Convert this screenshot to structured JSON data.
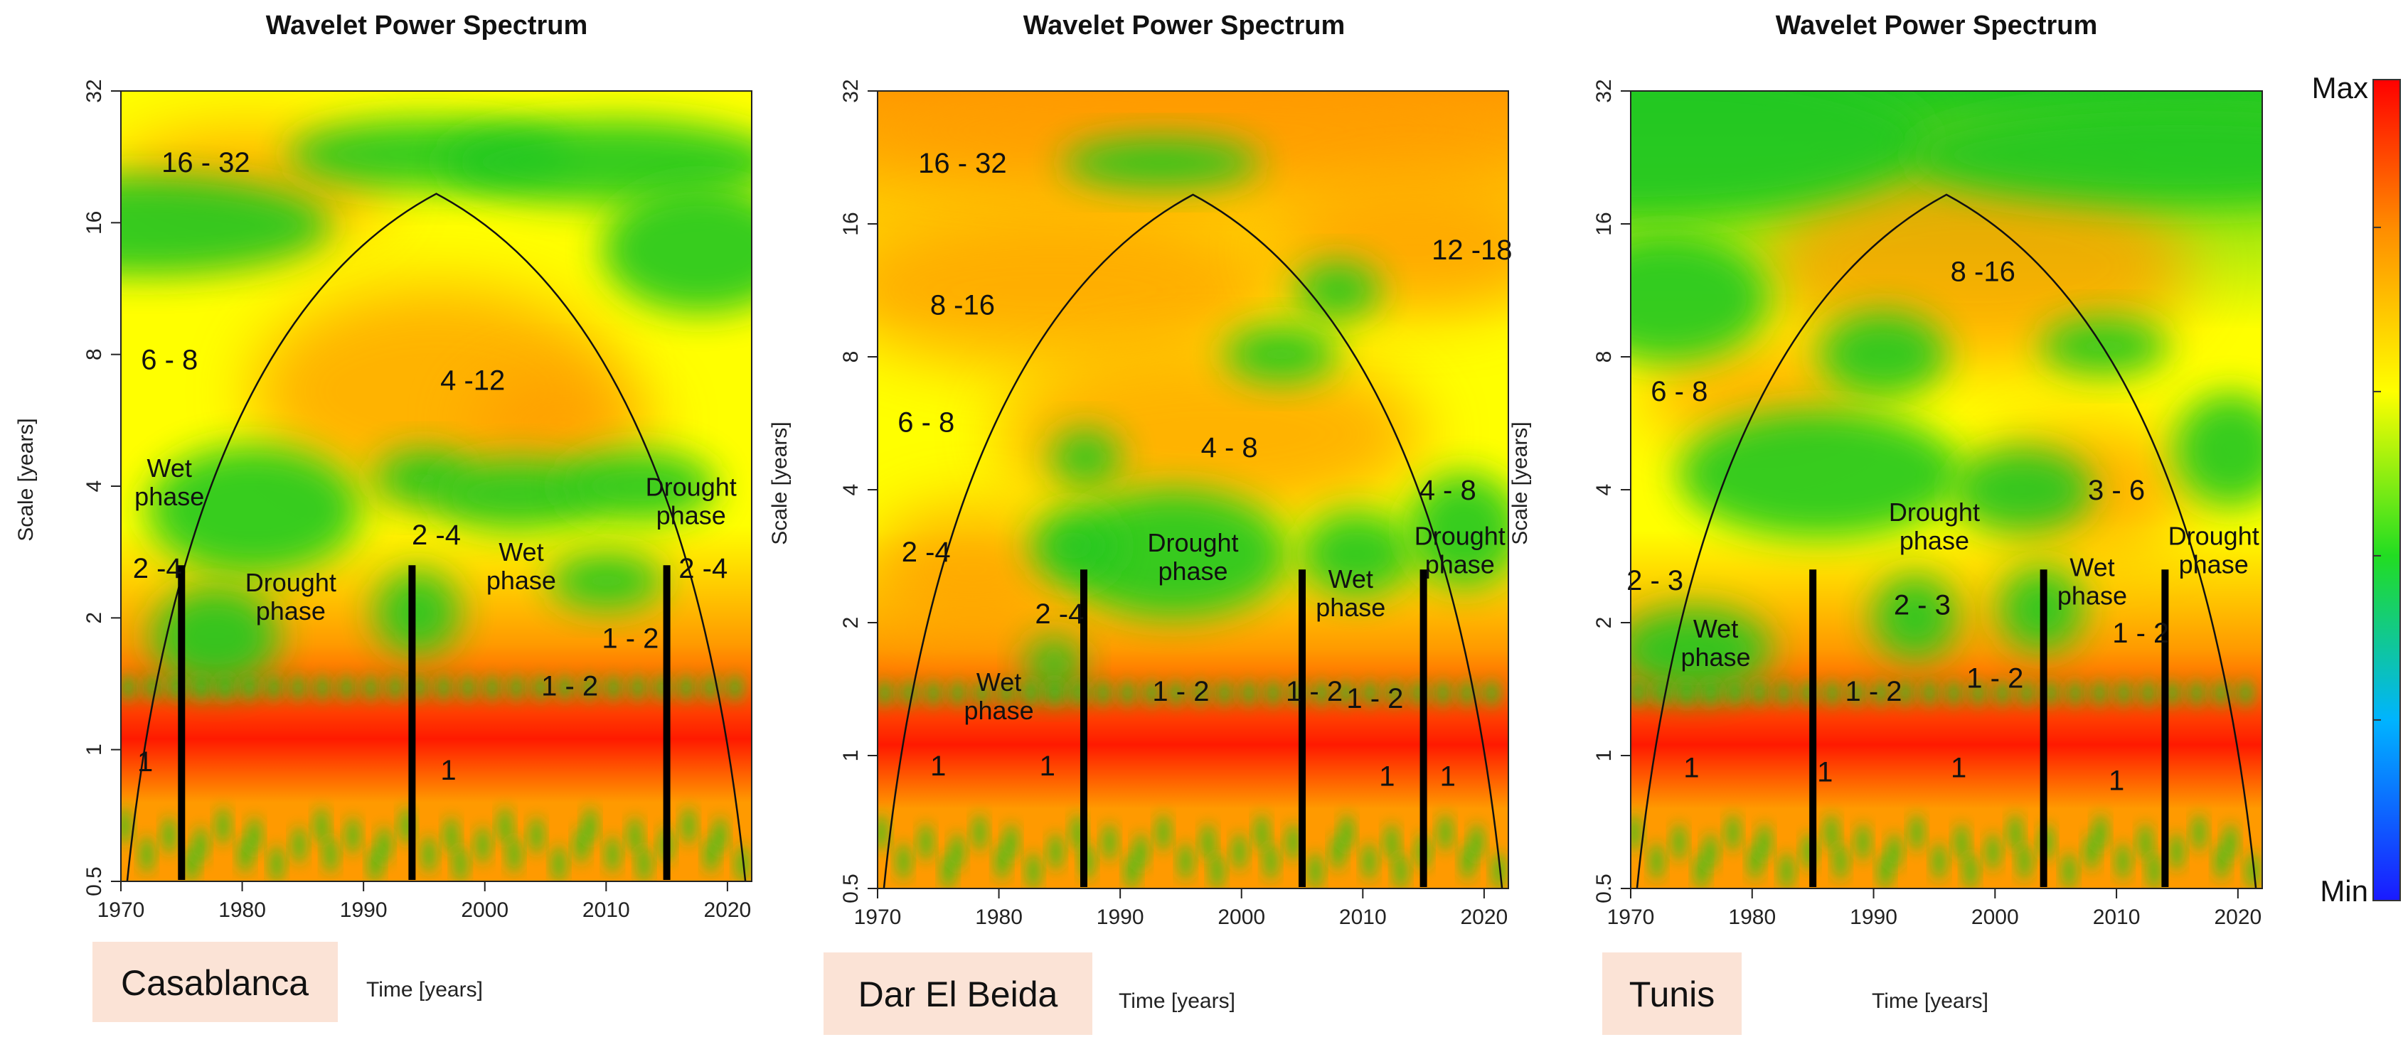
{
  "chart_data": [
    {
      "type": "heatmap",
      "title": "Wavelet Power Spectrum",
      "xlabel": "Time [years]",
      "ylabel": "Scale [years]",
      "xlim": [
        1970,
        2022
      ],
      "ylim": [
        0.5,
        32
      ],
      "y_scale": "log2",
      "x_ticks": [
        1970,
        1980,
        1990,
        2000,
        2010,
        2020
      ],
      "y_ticks": [
        "0.5",
        "1",
        "2",
        "4",
        "8",
        "16",
        "32"
      ],
      "cone_of_influence": true,
      "station": "Casablanca",
      "phase_boundaries_years": [
        1975,
        1994,
        2015
      ],
      "annotations": [
        {
          "text": "16 - 32",
          "x": 1977,
          "scale": 22
        },
        {
          "text": "6 - 8",
          "x": 1974,
          "scale": 7.8
        },
        {
          "text": "4 -12",
          "x": 1999,
          "scale": 7
        },
        {
          "text": "2 -4",
          "x": 1973,
          "scale": 2.6
        },
        {
          "text": "2 -4",
          "x": 1996,
          "scale": 3.1
        },
        {
          "text": "2 -4",
          "x": 2018,
          "scale": 2.6
        },
        {
          "text": "1 - 2",
          "x": 2007,
          "scale": 1.4
        },
        {
          "text": "1 - 2",
          "x": 2012,
          "scale": 1.8
        },
        {
          "text": "1",
          "x": 1972,
          "scale": 0.94
        },
        {
          "text": "1",
          "x": 1997,
          "scale": 0.9
        }
      ],
      "phases": [
        {
          "lines": [
            "Wet",
            "phase"
          ],
          "x": 1974,
          "scale": 4.2
        },
        {
          "lines": [
            "Drought",
            "phase"
          ],
          "x": 1984,
          "scale": 2.3
        },
        {
          "lines": [
            "Wet",
            "phase"
          ],
          "x": 2003,
          "scale": 2.7
        },
        {
          "lines": [
            "Drought",
            "phase"
          ],
          "x": 2017,
          "scale": 3.8
        }
      ]
    },
    {
      "type": "heatmap",
      "title": "Wavelet Power Spectrum",
      "xlabel": "Time [years]",
      "ylabel": "Scale [years]",
      "xlim": [
        1970,
        2022
      ],
      "ylim": [
        0.5,
        32
      ],
      "y_scale": "log2",
      "x_ticks": [
        1970,
        1980,
        1990,
        2000,
        2010,
        2020
      ],
      "y_ticks": [
        "0.5",
        "1",
        "2",
        "4",
        "8",
        "16",
        "32"
      ],
      "cone_of_influence": true,
      "station": "Dar El Beida",
      "phase_boundaries_years": [
        1987,
        2005,
        2015
      ],
      "annotations": [
        {
          "text": "16 - 32",
          "x": 1977,
          "scale": 22
        },
        {
          "text": "12 -18",
          "x": 2019,
          "scale": 14
        },
        {
          "text": "8 -16",
          "x": 1977,
          "scale": 10.5
        },
        {
          "text": "6 - 8",
          "x": 1974,
          "scale": 5.7
        },
        {
          "text": "4 - 8",
          "x": 1999,
          "scale": 5
        },
        {
          "text": "4 - 8",
          "x": 2017,
          "scale": 4
        },
        {
          "text": "2 -4",
          "x": 1974,
          "scale": 2.9
        },
        {
          "text": "2 -4",
          "x": 1985,
          "scale": 2.1
        },
        {
          "text": "1 - 2",
          "x": 1995,
          "scale": 1.4
        },
        {
          "text": "1 - 2",
          "x": 2006,
          "scale": 1.4
        },
        {
          "text": "1 - 2",
          "x": 2011,
          "scale": 1.35
        },
        {
          "text": "1",
          "x": 1975,
          "scale": 0.95
        },
        {
          "text": "1",
          "x": 1984,
          "scale": 0.95
        },
        {
          "text": "1",
          "x": 2012,
          "scale": 0.9
        },
        {
          "text": "1",
          "x": 2017,
          "scale": 0.9
        }
      ],
      "phases": [
        {
          "lines": [
            "Wet",
            "phase"
          ],
          "x": 1980,
          "scale": 1.4
        },
        {
          "lines": [
            "Drought",
            "phase"
          ],
          "x": 1996,
          "scale": 2.9
        },
        {
          "lines": [
            "Wet",
            "phase"
          ],
          "x": 2009,
          "scale": 2.4
        },
        {
          "lines": [
            "Drought",
            "phase"
          ],
          "x": 2018,
          "scale": 3
        }
      ]
    },
    {
      "type": "heatmap",
      "title": "Wavelet Power Spectrum",
      "xlabel": "Time [years]",
      "ylabel": "Scale [years]",
      "xlim": [
        1970,
        2022
      ],
      "ylim": [
        0.5,
        32
      ],
      "y_scale": "log2",
      "x_ticks": [
        1970,
        1980,
        1990,
        2000,
        2010,
        2020
      ],
      "y_ticks": [
        "0.5",
        "1",
        "2",
        "4",
        "8",
        "16",
        "32"
      ],
      "cone_of_influence": true,
      "station": "Tunis",
      "phase_boundaries_years": [
        1985,
        2004,
        2014
      ],
      "annotations": [
        {
          "text": "8 -16",
          "x": 1999,
          "scale": 12.5
        },
        {
          "text": "6 - 8",
          "x": 1974,
          "scale": 6.7
        },
        {
          "text": "3 - 6",
          "x": 2010,
          "scale": 4
        },
        {
          "text": "2 - 3",
          "x": 1972,
          "scale": 2.5
        },
        {
          "text": "2 - 3",
          "x": 1994,
          "scale": 2.2
        },
        {
          "text": "1 - 2",
          "x": 1990,
          "scale": 1.4
        },
        {
          "text": "1 - 2",
          "x": 2000,
          "scale": 1.5
        },
        {
          "text": "1 - 2",
          "x": 2012,
          "scale": 1.9
        },
        {
          "text": "1",
          "x": 1975,
          "scale": 0.94
        },
        {
          "text": "1",
          "x": 1986,
          "scale": 0.92
        },
        {
          "text": "1",
          "x": 1997,
          "scale": 0.94
        },
        {
          "text": "1",
          "x": 2010,
          "scale": 0.88
        }
      ],
      "phases": [
        {
          "lines": [
            "Wet",
            "phase"
          ],
          "x": 1977,
          "scale": 1.85
        },
        {
          "lines": [
            "Drought",
            "phase"
          ],
          "x": 1995,
          "scale": 3.4
        },
        {
          "lines": [
            "Wet",
            "phase"
          ],
          "x": 2008,
          "scale": 2.55
        },
        {
          "lines": [
            "Drought",
            "phase"
          ],
          "x": 2018,
          "scale": 3
        }
      ]
    }
  ],
  "colorbar": {
    "max_label": "Max",
    "min_label": "Min",
    "colors": [
      "#1a1aff",
      "#00b4ff",
      "#22dd22",
      "#ffff00",
      "#ff8c00",
      "#ff0000"
    ]
  },
  "palette": {
    "low": "#22c822",
    "mid": "#ffff00",
    "high": "#ff9a00",
    "peak": "#ff1a00",
    "label_bg": "#fbe3d6",
    "boundary": "#000000"
  }
}
